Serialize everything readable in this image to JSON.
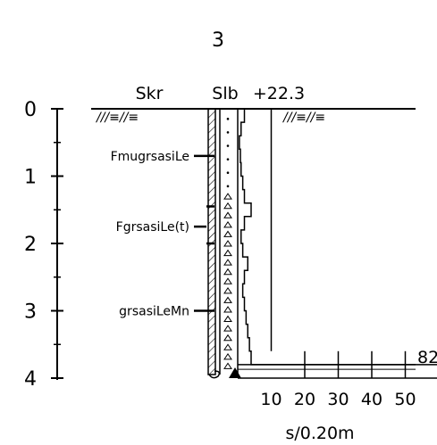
{
  "title": "3",
  "headers": {
    "skr": "Skr",
    "slb": "Slb",
    "elevation": "+22.3"
  },
  "surface_symbol": "///≡//≡",
  "depth_axis": {
    "ticks": [
      "0",
      "1",
      "2",
      "3",
      "4"
    ],
    "max_depth_m": 4
  },
  "soil_layers": [
    {
      "label": "FmugrsasiLe",
      "depth": 0.7
    },
    {
      "label": "FgrsasiLe(t)",
      "depth": 1.75
    },
    {
      "label": "grsasiLeMn",
      "depth": 3.0
    }
  ],
  "layer_ticks": [
    0.7,
    1.45,
    2.0,
    3.0
  ],
  "resistance_axis": {
    "ticks": [
      "10",
      "20",
      "30",
      "40",
      "50"
    ],
    "unit": "s/0.20m",
    "max": 50
  },
  "resistance_profile": [
    {
      "from": 0.0,
      "to": 0.2,
      "value": 2
    },
    {
      "from": 0.2,
      "to": 0.4,
      "value": 1
    },
    {
      "from": 0.4,
      "to": 0.6,
      "value": 0.5
    },
    {
      "from": 0.6,
      "to": 0.8,
      "value": 0.8
    },
    {
      "from": 0.8,
      "to": 1.0,
      "value": 1
    },
    {
      "from": 1.0,
      "to": 1.2,
      "value": 1.5
    },
    {
      "from": 1.2,
      "to": 1.4,
      "value": 2
    },
    {
      "from": 1.4,
      "to": 1.6,
      "value": 4
    },
    {
      "from": 1.6,
      "to": 1.8,
      "value": 2
    },
    {
      "from": 1.8,
      "to": 2.0,
      "value": 1
    },
    {
      "from": 2.0,
      "to": 2.2,
      "value": 1.5
    },
    {
      "from": 2.2,
      "to": 2.4,
      "value": 3
    },
    {
      "from": 2.4,
      "to": 2.6,
      "value": 2
    },
    {
      "from": 2.6,
      "to": 2.8,
      "value": 1.5
    },
    {
      "from": 2.8,
      "to": 3.0,
      "value": 2
    },
    {
      "from": 3.0,
      "to": 3.2,
      "value": 2.5
    },
    {
      "from": 3.2,
      "to": 3.4,
      "value": 3
    },
    {
      "from": 3.4,
      "to": 3.6,
      "value": 3.5
    },
    {
      "from": 3.6,
      "to": 3.8,
      "value": 4
    },
    {
      "from": 3.8,
      "to": 4.0,
      "value": 82
    }
  ],
  "final_value_label": "82",
  "colors": {
    "ink": "#000000",
    "hatch": "#000000"
  }
}
